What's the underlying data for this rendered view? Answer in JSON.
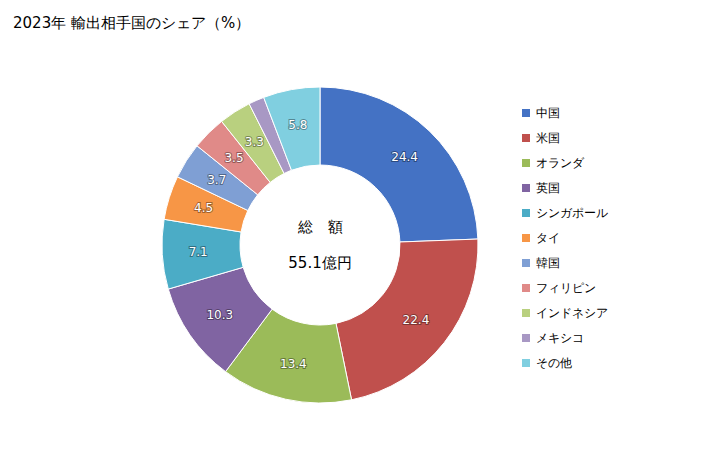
{
  "chart_data": {
    "type": "donut",
    "title": "2023年 輸出相手国のシェア（%）",
    "categories": [
      "中国",
      "米国",
      "オランダ",
      "英国",
      "シンガポール",
      "タイ",
      "韓国",
      "フィリピン",
      "インドネシア",
      "メキシコ",
      "その他"
    ],
    "values": [
      24.4,
      22.4,
      13.4,
      10.3,
      7.1,
      4.5,
      3.7,
      3.5,
      3.3,
      1.6,
      5.8
    ],
    "colors": [
      "#4472c4",
      "#c0504d",
      "#9bbb59",
      "#8064a2",
      "#4bacc6",
      "#f79646",
      "#7f9fd4",
      "#e08a88",
      "#b9d07f",
      "#a898c4",
      "#80cfe0"
    ],
    "data_labels": true,
    "legend": "right",
    "annotations": [
      "総　額",
      "55.1億円"
    ]
  }
}
